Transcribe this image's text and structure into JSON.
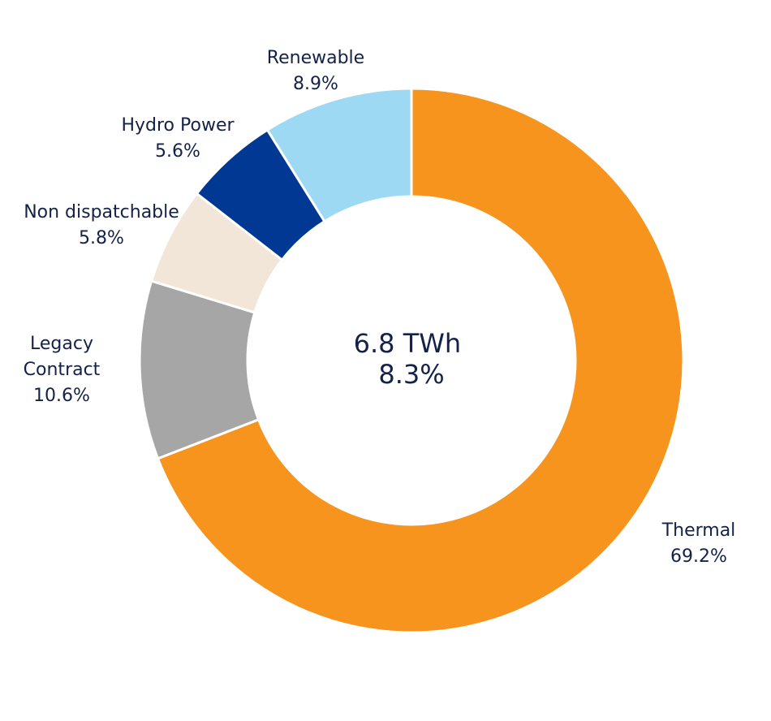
{
  "chart_data": {
    "type": "pie",
    "style": "donut",
    "center_label": [
      "6.8 TWh",
      "8.3%"
    ],
    "slices": [
      {
        "label": [
          "Thermal"
        ],
        "value_text": "69.2%",
        "value": 69.2,
        "color": "#f7941d"
      },
      {
        "label": [
          "Legacy",
          "Contract"
        ],
        "value_text": "10.6%",
        "value": 10.6,
        "color": "#a6a6a6"
      },
      {
        "label": [
          "Non dispatchable"
        ],
        "value_text": "5.8%",
        "value": 5.8,
        "color": "#f2e6d8"
      },
      {
        "label": [
          "Hydro Power"
        ],
        "value_text": "5.6%",
        "value": 5.6,
        "color": "#003893"
      },
      {
        "label": [
          "Renewable"
        ],
        "value_text": "8.9%",
        "value": 8.9,
        "color": "#9dd9f3"
      }
    ]
  }
}
